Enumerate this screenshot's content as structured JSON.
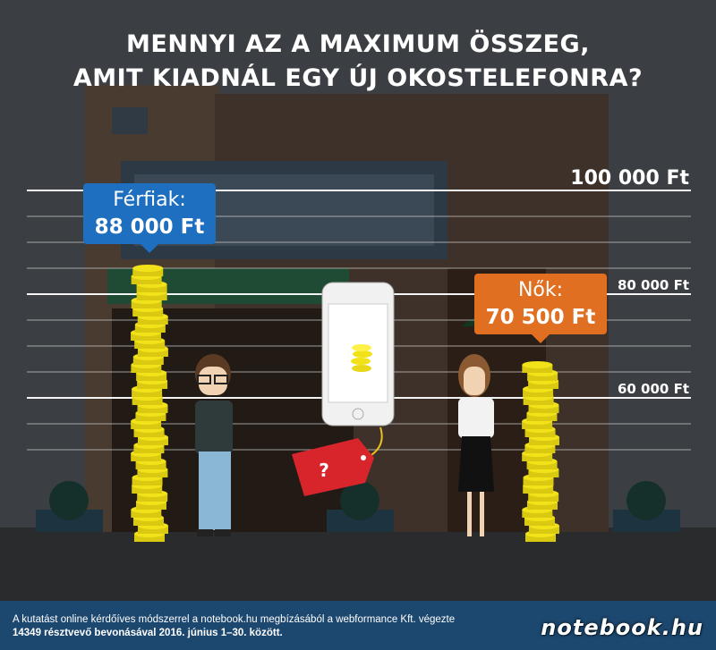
{
  "title_lines": [
    "MENNYI AZ A MAXIMUM ÖSSZEG,",
    "AMIT KIADNÁL EGY ÚJ OKOSTELEFONRA?"
  ],
  "colors": {
    "men": "#1e6fbf",
    "women": "#e06f22",
    "coin": "#f2e21a",
    "footer": "#1c476e",
    "background": "#3b3f43"
  },
  "chart_data": {
    "type": "bar",
    "title": "MENNYI AZ A MAXIMUM ÖSSZEG, AMIT KIADNÁL EGY ÚJ OKOSTELEFONRA?",
    "categories": [
      "Férfiak",
      "Nők"
    ],
    "values": [
      88000,
      70500
    ],
    "value_labels": [
      "88 000 Ft",
      "70 500 Ft"
    ],
    "ticks": [
      {
        "value": 100000,
        "label": "100 000 Ft"
      },
      {
        "value": 80000,
        "label": "80 000 Ft"
      },
      {
        "value": 60000,
        "label": "60 000 Ft"
      }
    ],
    "gridline_step": 5000,
    "grid": true
  },
  "labels": {
    "men": "Férfiak:",
    "women": "Nők:",
    "price_tag": "?"
  },
  "footer": {
    "line1": "A kutatást online kérdőíves módszerrel a notebook.hu megbízásából a webformance Kft. végezte",
    "line2": "14349 résztvevő bevonásával 2016. június 1–30. között.",
    "logo": "notebook.hu"
  }
}
